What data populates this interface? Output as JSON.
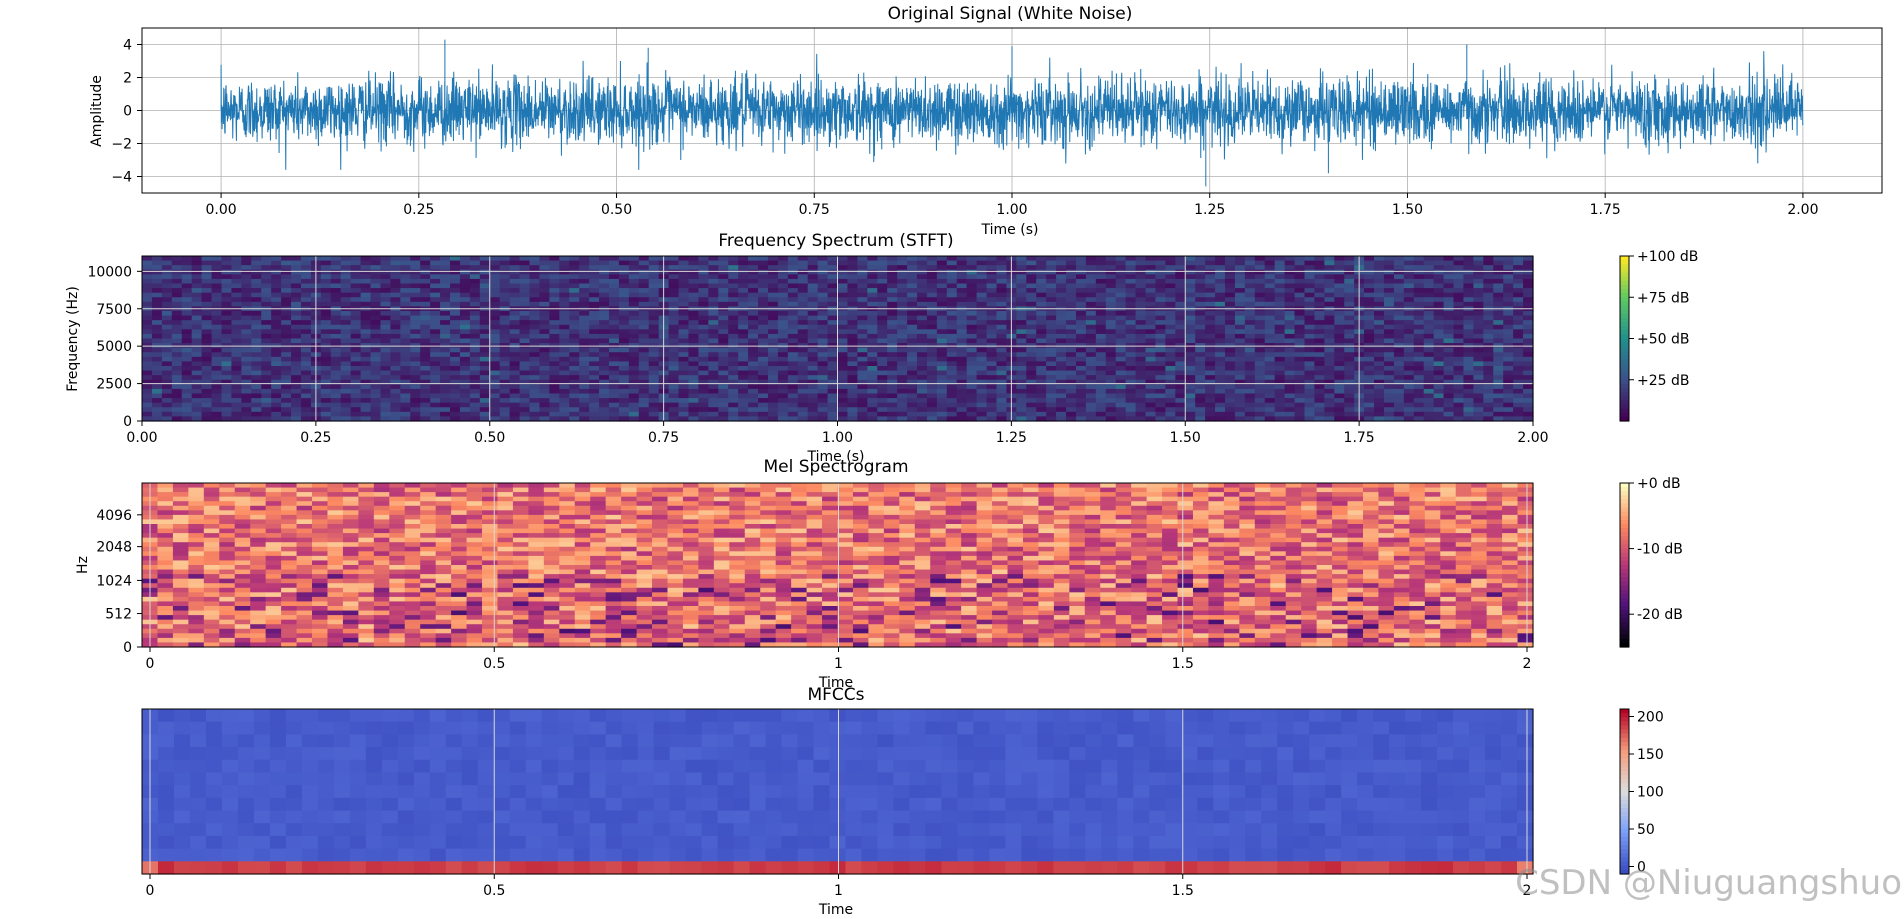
{
  "chart_data": [
    {
      "type": "line",
      "title": "Original Signal (White Noise)",
      "xlabel": "Time (s)",
      "ylabel": "Amplitude",
      "xlim": [
        -0.1,
        2.1
      ],
      "ylim": [
        -5,
        5
      ],
      "x_ticks": [
        0.0,
        0.25,
        0.5,
        0.75,
        1.0,
        1.25,
        1.5,
        1.75,
        2.0
      ],
      "x_tick_labels": [
        "0.00",
        "0.25",
        "0.50",
        "0.75",
        "1.00",
        "1.25",
        "1.50",
        "1.75",
        "2.00"
      ],
      "y_ticks": [
        4,
        2,
        0,
        -2,
        -4
      ],
      "y_tick_labels": [
        "4",
        "2",
        "0",
        "−2",
        "−4"
      ],
      "grid": true,
      "series": [
        {
          "color": "#1f77b4",
          "x_range": [
            0.0,
            2.0
          ],
          "distribution": "gaussian",
          "std": 1.0,
          "peaks": [
            {
              "x": 0.283,
              "y": 4.3
            },
            {
              "x": 1.245,
              "y": -4.6
            },
            {
              "x": 1.575,
              "y": 4.0
            },
            {
              "x": 1.0,
              "y": 3.9
            },
            {
              "x": 0.54,
              "y": 3.8
            },
            {
              "x": 1.4,
              "y": -3.8
            }
          ]
        }
      ]
    },
    {
      "type": "heatmap",
      "title": "Frequency Spectrum (STFT)",
      "xlabel": "Time (s)",
      "ylabel": "Frequency (Hz)",
      "xlim": [
        0,
        2.0
      ],
      "ylim": [
        0,
        11025
      ],
      "x_tick_labels": [
        "0.00",
        "0.25",
        "0.50",
        "0.75",
        "1.00",
        "1.25",
        "1.50",
        "1.75",
        "2.00"
      ],
      "y_tick_labels": [
        "0",
        "2500",
        "5000",
        "7500",
        "10000"
      ],
      "colormap": "viridis",
      "value_range_db": [
        0,
        100
      ],
      "typical_value_db": 15,
      "colorbar_labels": [
        "+100 dB",
        "+75 dB",
        "+50 dB",
        "+25 dB"
      ],
      "grid": true
    },
    {
      "type": "heatmap",
      "title": "Mel Spectrogram",
      "xlabel": "Time",
      "ylabel": "Hz",
      "xlim": [
        0,
        2.0
      ],
      "x_tick_labels": [
        "0",
        "0.5",
        "1",
        "1.5",
        "2"
      ],
      "y_tick_labels": [
        "0",
        "512",
        "1024",
        "2048",
        "4096"
      ],
      "y_scale": "mel",
      "colormap": "magma",
      "value_range_db": [
        -25,
        0
      ],
      "typical_value_db": -8,
      "colorbar_labels": [
        "+0 dB",
        "-10 dB",
        "-20 dB"
      ],
      "grid": true
    },
    {
      "type": "heatmap",
      "title": "MFCCs",
      "xlabel": "Time",
      "ylabel": "",
      "xlim": [
        0,
        2.0
      ],
      "x_tick_labels": [
        "0",
        "0.5",
        "1",
        "1.5",
        "2"
      ],
      "n_coefficients": 13,
      "colormap": "coolwarm",
      "value_range": [
        -10,
        210
      ],
      "first_coefficient_value": 190,
      "other_coefficients_value": 0,
      "colorbar_labels": [
        "200",
        "150",
        "100",
        "50",
        "0"
      ],
      "grid": true
    }
  ],
  "watermark": "CSDN @Niuguangshuo"
}
